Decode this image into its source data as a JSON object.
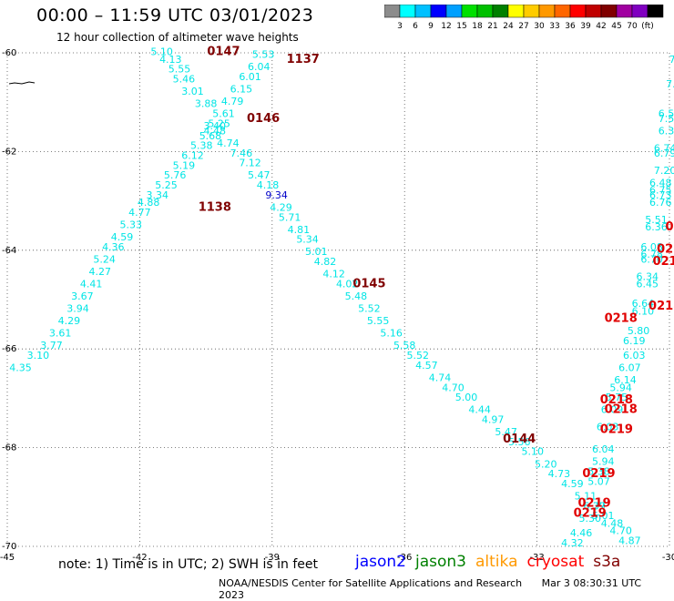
{
  "title": "00:00 – 11:59 UTC 03/01/2023",
  "subtitle": "12 hour collection of altimeter wave heights",
  "colorbar": {
    "colors": [
      "#8c8c8c",
      "#00ffff",
      "#00c0ff",
      "#0000ff",
      "#00a0ff",
      "#00e000",
      "#00c000",
      "#008000",
      "#ffff00",
      "#ffcc00",
      "#ff9900",
      "#ff6600",
      "#ff0000",
      "#c00000",
      "#800000",
      "#a000a0",
      "#8000c0",
      "#000000"
    ],
    "labels": [
      "3",
      "6",
      "9",
      "12",
      "15",
      "18",
      "21",
      "24",
      "27",
      "30",
      "33",
      "36",
      "39",
      "42",
      "45",
      "70",
      "(ft)"
    ]
  },
  "map": {
    "lon_range": [
      -45,
      -30
    ],
    "lat_range": [
      -70,
      -60
    ],
    "lon_ticks": [
      "-45",
      "-42",
      "-39",
      "-36",
      "-33",
      "-30"
    ],
    "lat_ticks": [
      "-60",
      "-62",
      "-64",
      "-66",
      "-68",
      "-70"
    ],
    "grid": "dotted"
  },
  "track_labels": [
    {
      "text": "0147",
      "lon": -40.1,
      "lat": -60.05
    },
    {
      "text": "1137",
      "lon": -38.3,
      "lat": -60.2
    },
    {
      "text": "0146",
      "lon": -39.2,
      "lat": -61.4
    },
    {
      "text": "1138",
      "lon": -40.3,
      "lat": -63.2
    },
    {
      "text": "0145",
      "lon": -36.8,
      "lat": -64.75
    },
    {
      "text": "0144",
      "lon": -33.4,
      "lat": -67.9
    },
    {
      "text": "0218",
      "lon": -31.1,
      "lat": -65.45
    },
    {
      "text": "0218",
      "lon": -30.1,
      "lat": -65.2
    },
    {
      "text": "0218",
      "lon": -31.2,
      "lat": -67.1
    },
    {
      "text": "0218",
      "lon": -31.1,
      "lat": -67.3
    },
    {
      "text": "0219",
      "lon": -31.2,
      "lat": -67.7
    },
    {
      "text": "0219",
      "lon": -31.6,
      "lat": -68.6
    },
    {
      "text": "0219",
      "lon": -31.7,
      "lat": -69.2
    },
    {
      "text": "0219",
      "lon": -31.8,
      "lat": -69.4
    },
    {
      "text": "021",
      "lon": -30.1,
      "lat": -64.3
    },
    {
      "text": "02",
      "lon": -30.1,
      "lat": -64.05
    },
    {
      "text": "0",
      "lon": -30.0,
      "lat": -63.6
    }
  ],
  "tracks": [
    {
      "name": "1138",
      "color": "#00e5e5",
      "points": [
        {
          "v": "4.35",
          "lon": -44.7,
          "lat": -66.45
        },
        {
          "v": "3.10",
          "lon": -44.3,
          "lat": -66.2
        },
        {
          "v": "3.77",
          "lon": -44.0,
          "lat": -66.0
        },
        {
          "v": "3.61",
          "lon": -43.8,
          "lat": -65.75
        },
        {
          "v": "4.29",
          "lon": -43.6,
          "lat": -65.5
        },
        {
          "v": "3.94",
          "lon": -43.4,
          "lat": -65.25
        },
        {
          "v": "3.67",
          "lon": -43.3,
          "lat": -65.0
        },
        {
          "v": "4.41",
          "lon": -43.1,
          "lat": -64.75
        },
        {
          "v": "4.27",
          "lon": -42.9,
          "lat": -64.5
        },
        {
          "v": "5.24",
          "lon": -42.8,
          "lat": -64.25
        },
        {
          "v": "4.36",
          "lon": -42.6,
          "lat": -64.0
        },
        {
          "v": "4.59",
          "lon": -42.4,
          "lat": -63.8
        },
        {
          "v": "5.33",
          "lon": -42.2,
          "lat": -63.55
        },
        {
          "v": "4.77",
          "lon": -42.0,
          "lat": -63.3
        },
        {
          "v": "4.88",
          "lon": -41.8,
          "lat": -63.1
        },
        {
          "v": "3.34",
          "lon": -41.6,
          "lat": -62.95
        },
        {
          "v": "5.25",
          "lon": -41.4,
          "lat": -62.75
        },
        {
          "v": "5.76",
          "lon": -41.2,
          "lat": -62.55
        },
        {
          "v": "5.19",
          "lon": -41.0,
          "lat": -62.35
        },
        {
          "v": "6.12",
          "lon": -40.8,
          "lat": -62.15
        },
        {
          "v": "5.38",
          "lon": -40.6,
          "lat": -61.95
        },
        {
          "v": "5.68",
          "lon": -40.4,
          "lat": -61.75
        },
        {
          "v": "5.25",
          "lon": -40.2,
          "lat": -61.5
        },
        {
          "v": "3.88",
          "lon": -40.5,
          "lat": -61.1
        },
        {
          "v": "3.01",
          "lon": -40.8,
          "lat": -60.85
        },
        {
          "v": "5.46",
          "lon": -41.0,
          "lat": -60.6
        },
        {
          "v": "5.55",
          "lon": -41.1,
          "lat": -60.4
        },
        {
          "v": "4.13",
          "lon": -41.3,
          "lat": -60.2
        },
        {
          "v": "5.10",
          "lon": -41.5,
          "lat": -60.05
        }
      ]
    },
    {
      "name": "1137",
      "color": "#00e5e5",
      "points": [
        {
          "v": "5.53",
          "lon": -39.2,
          "lat": -60.1
        },
        {
          "v": "6.04",
          "lon": -39.3,
          "lat": -60.35
        },
        {
          "v": "6.01",
          "lon": -39.5,
          "lat": -60.55
        },
        {
          "v": "6.15",
          "lon": -39.7,
          "lat": -60.8
        },
        {
          "v": "4.79",
          "lon": -39.9,
          "lat": -61.05
        },
        {
          "v": "5.61",
          "lon": -40.1,
          "lat": -61.3
        },
        {
          "v": "3.40",
          "lon": -40.3,
          "lat": -61.55
        }
      ]
    },
    {
      "name": "0146",
      "color": "#00e5e5",
      "points": [
        {
          "v": "4.48",
          "lon": -40.3,
          "lat": -61.65
        },
        {
          "v": "4.74",
          "lon": -40.0,
          "lat": -61.9
        },
        {
          "v": "7.46",
          "lon": -39.7,
          "lat": -62.1
        },
        {
          "v": "7.12",
          "lon": -39.5,
          "lat": -62.3
        },
        {
          "v": "5.47",
          "lon": -39.3,
          "lat": -62.55
        },
        {
          "v": "4.18",
          "lon": -39.1,
          "lat": -62.75
        },
        {
          "v": "9.34",
          "lon": -38.9,
          "lat": -62.95,
          "color": "#0000c8"
        },
        {
          "v": "4.29",
          "lon": -38.8,
          "lat": -63.2
        },
        {
          "v": "5.71",
          "lon": -38.6,
          "lat": -63.4
        },
        {
          "v": "4.81",
          "lon": -38.4,
          "lat": -63.65
        },
        {
          "v": "5.34",
          "lon": -38.2,
          "lat": -63.85
        },
        {
          "v": "5.01",
          "lon": -38.0,
          "lat": -64.1
        },
        {
          "v": "4.82",
          "lon": -37.8,
          "lat": -64.3
        },
        {
          "v": "4.12",
          "lon": -37.6,
          "lat": -64.55
        },
        {
          "v": "4.02",
          "lon": -37.3,
          "lat": -64.75
        },
        {
          "v": "5.48",
          "lon": -37.1,
          "lat": -65.0
        },
        {
          "v": "5.52",
          "lon": -36.8,
          "lat": -65.25
        },
        {
          "v": "5.55",
          "lon": -36.6,
          "lat": -65.5
        },
        {
          "v": "5.16",
          "lon": -36.3,
          "lat": -65.75
        },
        {
          "v": "5.58",
          "lon": -36.0,
          "lat": -66.0
        },
        {
          "v": "5.52",
          "lon": -35.7,
          "lat": -66.2
        },
        {
          "v": "4.57",
          "lon": -35.5,
          "lat": -66.4
        },
        {
          "v": "4.74",
          "lon": -35.2,
          "lat": -66.65
        },
        {
          "v": "4.70",
          "lon": -34.9,
          "lat": -66.85
        },
        {
          "v": "5.00",
          "lon": -34.6,
          "lat": -67.05
        },
        {
          "v": "4.44",
          "lon": -34.3,
          "lat": -67.3
        },
        {
          "v": "4.97",
          "lon": -34.0,
          "lat": -67.5
        },
        {
          "v": "5.47",
          "lon": -33.7,
          "lat": -67.75
        },
        {
          "v": "5.56",
          "lon": -33.4,
          "lat": -67.95
        },
        {
          "v": "5.10",
          "lon": -33.1,
          "lat": -68.15
        },
        {
          "v": "5.20",
          "lon": -32.8,
          "lat": -68.4
        },
        {
          "v": "4.73",
          "lon": -32.5,
          "lat": -68.6
        },
        {
          "v": "4.59",
          "lon": -32.2,
          "lat": -68.8
        },
        {
          "v": "5.11",
          "lon": -31.9,
          "lat": -69.05
        },
        {
          "v": "6.77",
          "lon": -31.7,
          "lat": -69.25
        },
        {
          "v": "5.01",
          "lon": -31.5,
          "lat": -69.45
        },
        {
          "v": "4.48",
          "lon": -31.3,
          "lat": -69.6
        },
        {
          "v": "4.70",
          "lon": -31.1,
          "lat": -69.75
        },
        {
          "v": "4.87",
          "lon": -30.9,
          "lat": -69.95
        }
      ]
    },
    {
      "name": "0218",
      "color": "#00e5e5",
      "points": [
        {
          "v": "4.32",
          "lon": -32.2,
          "lat": -70.0
        },
        {
          "v": "4.46",
          "lon": -32.0,
          "lat": -69.8
        },
        {
          "v": "5.30",
          "lon": -31.8,
          "lat": -69.5
        },
        {
          "v": "5.39",
          "lon": -31.7,
          "lat": -69.25
        },
        {
          "v": "5.07",
          "lon": -31.6,
          "lat": -68.75
        },
        {
          "v": "5.38",
          "lon": -31.6,
          "lat": -68.55
        },
        {
          "v": "5.94",
          "lon": -31.5,
          "lat": -68.35
        },
        {
          "v": "6.04",
          "lon": -31.5,
          "lat": -68.1
        },
        {
          "v": "6.03",
          "lon": -31.4,
          "lat": -67.65
        },
        {
          "v": "6.09",
          "lon": -31.3,
          "lat": -67.3
        },
        {
          "v": "5.75",
          "lon": -31.2,
          "lat": -67.05
        },
        {
          "v": "5.94",
          "lon": -31.1,
          "lat": -66.85
        },
        {
          "v": "6.14",
          "lon": -31.0,
          "lat": -66.7
        },
        {
          "v": "6.07",
          "lon": -30.9,
          "lat": -66.45
        },
        {
          "v": "6.03",
          "lon": -30.8,
          "lat": -66.2
        },
        {
          "v": "6.19",
          "lon": -30.8,
          "lat": -65.9
        },
        {
          "v": "5.80",
          "lon": -30.7,
          "lat": -65.7
        },
        {
          "v": "6.10",
          "lon": -30.6,
          "lat": -65.3
        },
        {
          "v": "6.64",
          "lon": -30.6,
          "lat": -65.15
        },
        {
          "v": "6.45",
          "lon": -30.5,
          "lat": -64.75
        },
        {
          "v": "6.34",
          "lon": -30.5,
          "lat": -64.6
        },
        {
          "v": "6.70",
          "lon": -30.4,
          "lat": -64.25
        },
        {
          "v": "6.78",
          "lon": -30.4,
          "lat": -64.15
        },
        {
          "v": "6.08",
          "lon": -30.4,
          "lat": -64.0
        },
        {
          "v": "6.36",
          "lon": -30.3,
          "lat": -63.6
        },
        {
          "v": "5.51",
          "lon": -30.3,
          "lat": -63.45
        },
        {
          "v": "6.76",
          "lon": -30.2,
          "lat": -63.1
        },
        {
          "v": "6.73",
          "lon": -30.2,
          "lat": -62.95
        },
        {
          "v": "6.75",
          "lon": -30.2,
          "lat": -62.85
        },
        {
          "v": "6.48",
          "lon": -30.2,
          "lat": -62.7
        },
        {
          "v": "7.20",
          "lon": -30.1,
          "lat": -62.45
        },
        {
          "v": "6.79",
          "lon": -30.1,
          "lat": -62.1
        },
        {
          "v": "6.74",
          "lon": -30.1,
          "lat": -62.0
        },
        {
          "v": "6.34",
          "lon": -30.0,
          "lat": -61.65
        },
        {
          "v": "7.56",
          "lon": -30.0,
          "lat": -61.4
        },
        {
          "v": "6.55",
          "lon": -30.0,
          "lat": -61.3
        },
        {
          "v": "7.4",
          "lon": -29.9,
          "lat": -60.7
        },
        {
          "v": "7.",
          "lon": -29.9,
          "lat": -60.2
        }
      ]
    }
  ],
  "note": "note: 1) Time is in UTC; 2) SWH is in feet",
  "legend": [
    {
      "label": "jason2",
      "color": "#0000ff"
    },
    {
      "label": "jason3",
      "color": "#008000"
    },
    {
      "label": "altika",
      "color": "#ff9900"
    },
    {
      "label": "cryosat",
      "color": "#ff0000"
    },
    {
      "label": "s3a",
      "color": "#800000"
    }
  ],
  "footer": {
    "org": "NOAA/NESDIS Center for Satellite Applications and Research",
    "date": "Mar  3 08:30:31 UTC 2023"
  }
}
